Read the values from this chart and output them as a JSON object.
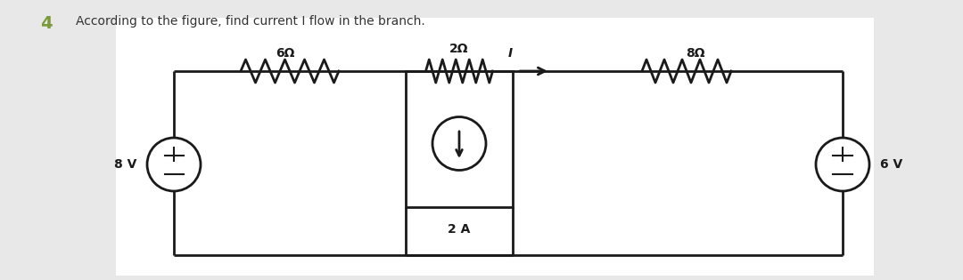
{
  "title_number": "4",
  "title_text": "According to the figure, find current I flow in the branch.",
  "title_number_color": "#7a9a3a",
  "title_text_color": "#333333",
  "bg_color": "#e8e8e8",
  "panel_color": "#ffffff",
  "line_color": "#1a1a1a",
  "label_8v": "8 V",
  "label_6v": "6 V",
  "label_6ohm": "6Ω",
  "label_2ohm": "2Ω",
  "label_8ohm": "8Ω",
  "label_2a": "2 A",
  "label_I": "I",
  "fig_width": 10.8,
  "fig_height": 3.15,
  "dpi": 100
}
